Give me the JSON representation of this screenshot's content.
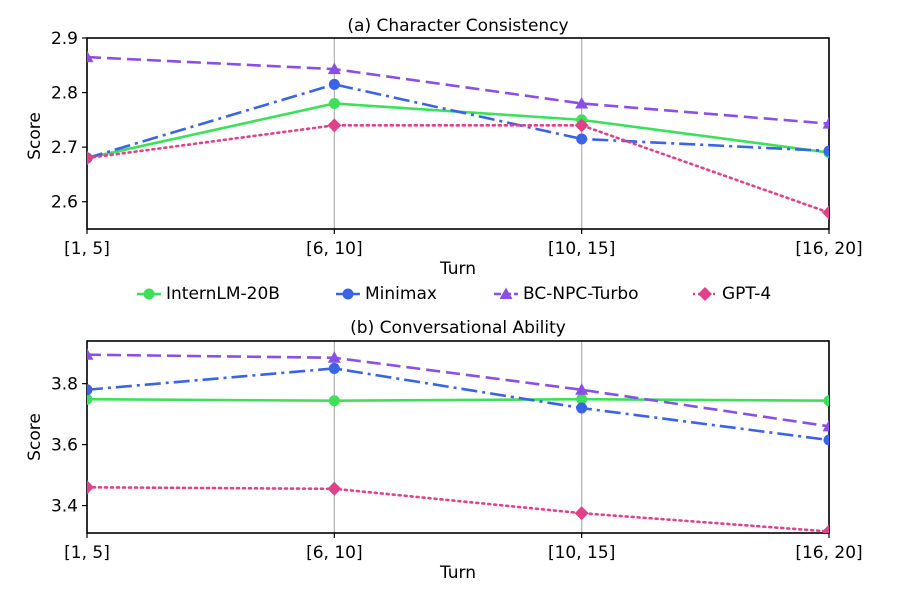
{
  "legend": {
    "placement": "center (between panels)",
    "entries": [
      {
        "label": "InternLM-20B",
        "color": "#3ee05b",
        "marker": "circle",
        "line": "solid"
      },
      {
        "label": "Minimax",
        "color": "#3a63e6",
        "marker": "circle",
        "line": "dashdot"
      },
      {
        "label": "BC-NPC-Turbo",
        "color": "#8a4fe6",
        "marker": "triangle",
        "line": "dashed"
      },
      {
        "label": "GPT-4",
        "color": "#e0428a",
        "marker": "diamond",
        "line": "dotted"
      }
    ]
  },
  "chart_data": [
    {
      "type": "line",
      "title": "(a) Character Consistency",
      "xlabel": "Turn",
      "ylabel": "Score",
      "categories": [
        "[1, 5]",
        "[6, 10]",
        "[10, 15]",
        "[16, 20]"
      ],
      "ylim": [
        2.55,
        2.9
      ],
      "yticks": [
        2.6,
        2.7,
        2.8,
        2.9
      ],
      "ytick_labels": [
        "2.6",
        "2.7",
        "2.8",
        "2.9"
      ],
      "grid": "vertical",
      "series": [
        {
          "name": "InternLM-20B",
          "values": [
            2.68,
            2.78,
            2.75,
            2.69
          ]
        },
        {
          "name": "Minimax",
          "values": [
            2.68,
            2.815,
            2.715,
            2.693
          ]
        },
        {
          "name": "BC-NPC-Turbo",
          "values": [
            2.865,
            2.843,
            2.78,
            2.743
          ]
        },
        {
          "name": "GPT-4",
          "values": [
            2.68,
            2.74,
            2.74,
            2.58
          ]
        }
      ]
    },
    {
      "type": "line",
      "title": "(b) Conversational Ability",
      "xlabel": "Turn",
      "ylabel": "Score",
      "categories": [
        "[1, 5]",
        "[6, 10]",
        "[10, 15]",
        "[16, 20]"
      ],
      "ylim": [
        3.31,
        3.94
      ],
      "yticks": [
        3.4,
        3.6,
        3.8
      ],
      "ytick_labels": [
        "3.4",
        "3.6",
        "3.8"
      ],
      "grid": "vertical",
      "series": [
        {
          "name": "InternLM-20B",
          "values": [
            3.749,
            3.744,
            3.749,
            3.744
          ]
        },
        {
          "name": "Minimax",
          "values": [
            3.78,
            3.85,
            3.72,
            3.615
          ]
        },
        {
          "name": "BC-NPC-Turbo",
          "values": [
            3.895,
            3.885,
            3.78,
            3.66
          ]
        },
        {
          "name": "GPT-4",
          "values": [
            3.46,
            3.455,
            3.375,
            3.315
          ]
        }
      ]
    }
  ]
}
